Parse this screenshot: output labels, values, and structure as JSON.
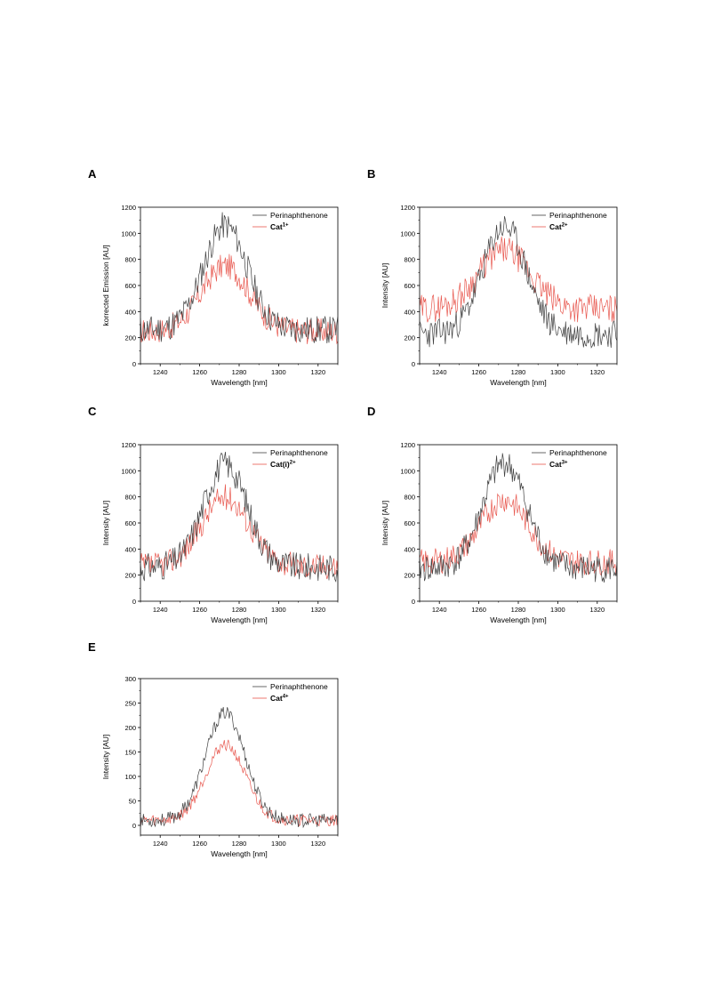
{
  "chart_data": [
    {
      "panel_label": "A",
      "type": "line",
      "xlabel": "Wavelength [nm]",
      "ylabel": "korrected Emission [AU]",
      "xlim": [
        1230,
        1330
      ],
      "ylim": [
        0,
        1200
      ],
      "xticks": [
        1240,
        1260,
        1280,
        1300,
        1320
      ],
      "yticks": [
        0,
        200,
        400,
        600,
        800,
        1000,
        1200
      ],
      "legend_position": "top-right",
      "series": [
        {
          "name": "Perinaphthenone",
          "label_main": "Perinaphthenone",
          "label_sup": "",
          "color": "#404040",
          "peak": 1060,
          "base": 260,
          "noise": 110,
          "width": 11,
          "seed": 11
        },
        {
          "name": "Cat1+",
          "label_main": "Cat",
          "label_sup": "1+",
          "color": "#e8584f",
          "peak": 750,
          "base": 250,
          "noise": 100,
          "width": 12,
          "seed": 17
        }
      ]
    },
    {
      "panel_label": "B",
      "type": "line",
      "xlabel": "Wavelength [nm]",
      "ylabel": "Intensity [AU]",
      "xlim": [
        1230,
        1330
      ],
      "ylim": [
        0,
        1200
      ],
      "xticks": [
        1240,
        1260,
        1280,
        1300,
        1320
      ],
      "yticks": [
        0,
        200,
        400,
        600,
        800,
        1000,
        1200
      ],
      "legend_position": "top-right",
      "series": [
        {
          "name": "Perinaphthenone",
          "label_main": "Perinaphthenone",
          "label_sup": "",
          "color": "#404040",
          "peak": 1050,
          "base": 230,
          "noise": 110,
          "width": 11,
          "seed": 23
        },
        {
          "name": "Cat2+",
          "label_main": "Cat",
          "label_sup": "2+",
          "color": "#e8584f",
          "peak": 870,
          "base": 420,
          "noise": 110,
          "width": 13,
          "seed": 29
        }
      ]
    },
    {
      "panel_label": "C",
      "type": "line",
      "xlabel": "Wavelength [nm]",
      "ylabel": "Intensity [AU]",
      "xlim": [
        1230,
        1330
      ],
      "ylim": [
        0,
        1200
      ],
      "xticks": [
        1240,
        1260,
        1280,
        1300,
        1320
      ],
      "yticks": [
        0,
        200,
        400,
        600,
        800,
        1000,
        1200
      ],
      "legend_position": "top-right",
      "series": [
        {
          "name": "Perinaphthenone",
          "label_main": "Perinaphthenone",
          "label_sup": "",
          "color": "#404040",
          "peak": 1050,
          "base": 260,
          "noise": 110,
          "width": 11,
          "seed": 31
        },
        {
          "name": "Cat(i)2+",
          "label_main": "Cat(i)",
          "label_sup": "2+",
          "color": "#e8584f",
          "peak": 800,
          "base": 270,
          "noise": 100,
          "width": 12,
          "seed": 37
        }
      ]
    },
    {
      "panel_label": "D",
      "type": "line",
      "xlabel": "Wavelength [nm]",
      "ylabel": "Intensity [AU]",
      "xlim": [
        1230,
        1330
      ],
      "ylim": [
        0,
        1200
      ],
      "xticks": [
        1240,
        1260,
        1280,
        1300,
        1320
      ],
      "yticks": [
        0,
        200,
        400,
        600,
        800,
        1000,
        1200
      ],
      "legend_position": "top-right",
      "series": [
        {
          "name": "Perinaphthenone",
          "label_main": "Perinaphthenone",
          "label_sup": "",
          "color": "#404040",
          "peak": 1060,
          "base": 250,
          "noise": 110,
          "width": 11,
          "seed": 41
        },
        {
          "name": "Cat3+",
          "label_main": "Cat",
          "label_sup": "3+",
          "color": "#e8584f",
          "peak": 780,
          "base": 300,
          "noise": 100,
          "width": 12,
          "seed": 43
        }
      ]
    },
    {
      "panel_label": "E",
      "type": "line",
      "xlabel": "Wavelength [nm]",
      "ylabel": "Intensity [AU]",
      "xlim": [
        1230,
        1330
      ],
      "ylim": [
        -20,
        300
      ],
      "xticks": [
        1240,
        1260,
        1280,
        1300,
        1320
      ],
      "yticks": [
        0,
        50,
        100,
        150,
        200,
        250,
        300
      ],
      "legend_position": "top-right",
      "series": [
        {
          "name": "Perinaphthenone",
          "label_main": "Perinaphthenone",
          "label_sup": "",
          "color": "#404040",
          "peak": 230,
          "base": 10,
          "noise": 14,
          "width": 10,
          "seed": 53
        },
        {
          "name": "Cat4+",
          "label_main": "Cat",
          "label_sup": "4+",
          "color": "#e8584f",
          "peak": 165,
          "base": 10,
          "noise": 12,
          "width": 10,
          "seed": 59
        }
      ]
    }
  ]
}
